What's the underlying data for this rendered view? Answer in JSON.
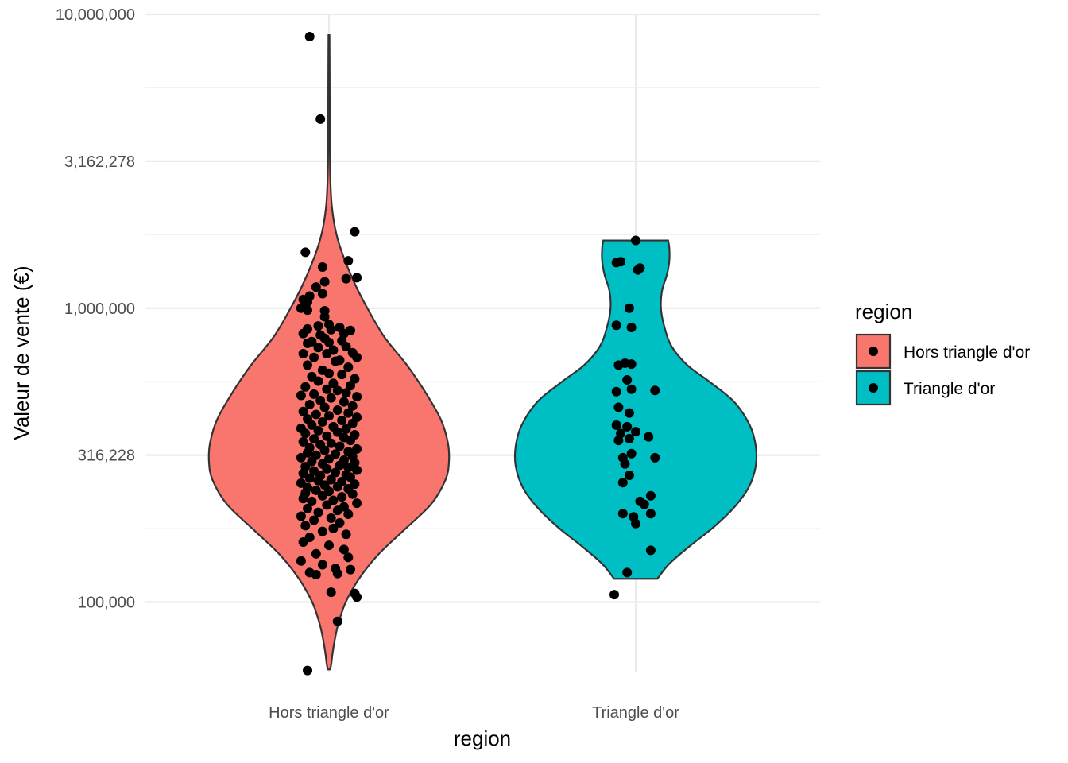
{
  "chart_data": {
    "type": "violin",
    "xlabel": "region",
    "ylabel": "Valeur de vente (€)",
    "y_scale": "log10",
    "ylim": [
      58000,
      10000000
    ],
    "y_ticks": [
      {
        "value": 100000,
        "label": "100,000"
      },
      {
        "value": 316228,
        "label": "316,228"
      },
      {
        "value": 1000000,
        "label": "1,000,000"
      },
      {
        "value": 3162278,
        "label": "3,162,278"
      },
      {
        "value": 10000000,
        "label": "10,000,000"
      }
    ],
    "y_minor_ticks": [
      56234,
      177828,
      562341,
      1778279,
      5623413
    ],
    "categories": [
      "Hors triangle d'or",
      "Triangle d'or"
    ],
    "grid": true,
    "legend": {
      "title": "region",
      "position": "right",
      "entries": [
        "Hors triangle d'or",
        "Triangle d'or"
      ]
    },
    "colors": {
      "Hors triangle d'or": "#F8766D",
      "Triangle d'or": "#00BFC4",
      "points": "#000000",
      "outline": "#333333"
    },
    "series": [
      {
        "name": "Hors triangle d'or",
        "violin_range": [
          59000,
          8500000
        ],
        "density": [
          [
            59000,
            0.01
          ],
          [
            62000,
            0.02
          ],
          [
            67000,
            0.03
          ],
          [
            75000,
            0.05
          ],
          [
            85000,
            0.08
          ],
          [
            100000,
            0.14
          ],
          [
            120000,
            0.25
          ],
          [
            145000,
            0.41
          ],
          [
            175000,
            0.62
          ],
          [
            215000,
            0.85
          ],
          [
            260000,
            0.97
          ],
          [
            300000,
            1.0
          ],
          [
            350000,
            0.99
          ],
          [
            420000,
            0.93
          ],
          [
            520000,
            0.8
          ],
          [
            640000,
            0.65
          ],
          [
            800000,
            0.46
          ],
          [
            1000000,
            0.32
          ],
          [
            1200000,
            0.22
          ],
          [
            1500000,
            0.12
          ],
          [
            1800000,
            0.06
          ],
          [
            2200000,
            0.025
          ],
          [
            2700000,
            0.012
          ],
          [
            3500000,
            0.007
          ],
          [
            5000000,
            0.006
          ],
          [
            7000000,
            0.005
          ],
          [
            8500000,
            0.004
          ]
        ],
        "points": [
          {
            "x": -0.09,
            "y": 8400000
          },
          {
            "x": -0.04,
            "y": 4400000
          },
          {
            "x": 0.12,
            "y": 1820000
          },
          {
            "x": -0.11,
            "y": 1550000
          },
          {
            "x": 0.09,
            "y": 1450000
          },
          {
            "x": -0.03,
            "y": 1380000
          },
          {
            "x": 0.13,
            "y": 1270000
          },
          {
            "x": 0.08,
            "y": 1260000
          },
          {
            "x": -0.02,
            "y": 1230000
          },
          {
            "x": -0.06,
            "y": 1180000
          },
          {
            "x": -0.03,
            "y": 1120000
          },
          {
            "x": -0.09,
            "y": 1100000
          },
          {
            "x": -0.12,
            "y": 1070000
          },
          {
            "x": -0.1,
            "y": 1050000
          },
          {
            "x": -0.02,
            "y": 980000
          },
          {
            "x": -0.13,
            "y": 1000000
          },
          {
            "x": -0.1,
            "y": 985000
          },
          {
            "x": -0.02,
            "y": 935000
          },
          {
            "x": 0.0,
            "y": 880000
          },
          {
            "x": -0.05,
            "y": 870000
          },
          {
            "x": 0.05,
            "y": 860000
          },
          {
            "x": -0.1,
            "y": 850000
          },
          {
            "x": 0.01,
            "y": 845000
          },
          {
            "x": 0.07,
            "y": 820000
          },
          {
            "x": -0.04,
            "y": 810000
          },
          {
            "x": -0.02,
            "y": 790000
          },
          {
            "x": -0.12,
            "y": 820000
          },
          {
            "x": 0.1,
            "y": 840000
          },
          {
            "x": 0.06,
            "y": 775000
          },
          {
            "x": -0.08,
            "y": 770000
          },
          {
            "x": 0.0,
            "y": 765000
          },
          {
            "x": -0.1,
            "y": 760000
          },
          {
            "x": 0.08,
            "y": 740000
          },
          {
            "x": -0.05,
            "y": 735000
          },
          {
            "x": 0.02,
            "y": 720000
          },
          {
            "x": -0.01,
            "y": 700000
          },
          {
            "x": 0.11,
            "y": 705000
          },
          {
            "x": 0.13,
            "y": 680000
          },
          {
            "x": -0.12,
            "y": 700000
          },
          {
            "x": -0.07,
            "y": 680000
          },
          {
            "x": 0.05,
            "y": 665000
          },
          {
            "x": 0.03,
            "y": 660000
          },
          {
            "x": -0.1,
            "y": 640000
          },
          {
            "x": 0.09,
            "y": 630000
          },
          {
            "x": -0.03,
            "y": 615000
          },
          {
            "x": 0.0,
            "y": 600000
          },
          {
            "x": 0.06,
            "y": 595000
          },
          {
            "x": -0.08,
            "y": 585000
          },
          {
            "x": 0.12,
            "y": 575000
          },
          {
            "x": -0.05,
            "y": 565000
          },
          {
            "x": 0.02,
            "y": 555000
          },
          {
            "x": 0.1,
            "y": 545000
          },
          {
            "x": -0.11,
            "y": 540000
          },
          {
            "x": -0.01,
            "y": 530000
          },
          {
            "x": 0.04,
            "y": 525000
          },
          {
            "x": 0.08,
            "y": 515000
          },
          {
            "x": -0.07,
            "y": 510000
          },
          {
            "x": -0.13,
            "y": 505000
          },
          {
            "x": 0.13,
            "y": 500000
          },
          {
            "x": 0.01,
            "y": 495000
          },
          {
            "x": -0.04,
            "y": 485000
          },
          {
            "x": 0.07,
            "y": 480000
          },
          {
            "x": -0.09,
            "y": 470000
          },
          {
            "x": 0.11,
            "y": 465000
          },
          {
            "x": -0.02,
            "y": 460000
          },
          {
            "x": 0.04,
            "y": 450000
          },
          {
            "x": -0.12,
            "y": 445000
          },
          {
            "x": 0.09,
            "y": 440000
          },
          {
            "x": -0.06,
            "y": 435000
          },
          {
            "x": 0.0,
            "y": 430000
          },
          {
            "x": 0.13,
            "y": 425000
          },
          {
            "x": -0.1,
            "y": 420000
          },
          {
            "x": 0.06,
            "y": 415000
          },
          {
            "x": -0.03,
            "y": 410000
          },
          {
            "x": 0.11,
            "y": 405000
          },
          {
            "x": -0.08,
            "y": 400000
          },
          {
            "x": 0.02,
            "y": 395000
          },
          {
            "x": -0.13,
            "y": 390000
          },
          {
            "x": 0.08,
            "y": 388000
          },
          {
            "x": -0.05,
            "y": 383000
          },
          {
            "x": 0.04,
            "y": 379000
          },
          {
            "x": -0.11,
            "y": 375000
          },
          {
            "x": 0.12,
            "y": 371000
          },
          {
            "x": -0.01,
            "y": 367000
          },
          {
            "x": 0.07,
            "y": 363000
          },
          {
            "x": -0.07,
            "y": 359000
          },
          {
            "x": 0.1,
            "y": 355000
          },
          {
            "x": -0.12,
            "y": 351000
          },
          {
            "x": 0.01,
            "y": 347000
          },
          {
            "x": -0.04,
            "y": 343000
          },
          {
            "x": 0.05,
            "y": 339000
          },
          {
            "x": -0.09,
            "y": 335000
          },
          {
            "x": 0.13,
            "y": 332000
          },
          {
            "x": -0.02,
            "y": 328000
          },
          {
            "x": 0.09,
            "y": 325000
          },
          {
            "x": -0.1,
            "y": 322000
          },
          {
            "x": 0.03,
            "y": 319000
          },
          {
            "x": -0.06,
            "y": 316000
          },
          {
            "x": 0.11,
            "y": 313000
          },
          {
            "x": -0.13,
            "y": 310000
          },
          {
            "x": 0.0,
            "y": 307000
          },
          {
            "x": 0.07,
            "y": 304000
          },
          {
            "x": -0.08,
            "y": 301000
          },
          {
            "x": 0.12,
            "y": 298000
          },
          {
            "x": -0.03,
            "y": 295000
          },
          {
            "x": 0.05,
            "y": 292000
          },
          {
            "x": -0.11,
            "y": 289000
          },
          {
            "x": 0.09,
            "y": 287000
          },
          {
            "x": -0.01,
            "y": 284000
          },
          {
            "x": 0.13,
            "y": 281000
          },
          {
            "x": -0.07,
            "y": 279000
          },
          {
            "x": 0.03,
            "y": 276000
          },
          {
            "x": -0.12,
            "y": 274000
          },
          {
            "x": 0.08,
            "y": 271000
          },
          {
            "x": -0.04,
            "y": 269000
          },
          {
            "x": 0.1,
            "y": 266000
          },
          {
            "x": -0.09,
            "y": 264000
          },
          {
            "x": 0.01,
            "y": 261000
          },
          {
            "x": -0.05,
            "y": 259000
          },
          {
            "x": 0.06,
            "y": 257000
          },
          {
            "x": -0.13,
            "y": 254000
          },
          {
            "x": 0.12,
            "y": 252000
          },
          {
            "x": -0.02,
            "y": 250000
          },
          {
            "x": 0.04,
            "y": 247000
          },
          {
            "x": -0.1,
            "y": 245000
          },
          {
            "x": 0.09,
            "y": 243000
          },
          {
            "x": -0.06,
            "y": 240000
          },
          {
            "x": 0.0,
            "y": 238000
          },
          {
            "x": -0.11,
            "y": 235000
          },
          {
            "x": 0.11,
            "y": 233000
          },
          {
            "x": -0.03,
            "y": 230000
          },
          {
            "x": 0.06,
            "y": 228000
          },
          {
            "x": -0.12,
            "y": 225000
          },
          {
            "x": 0.02,
            "y": 222000
          },
          {
            "x": -0.08,
            "y": 220000
          },
          {
            "x": 0.13,
            "y": 217000
          },
          {
            "x": -0.01,
            "y": 214000
          },
          {
            "x": 0.07,
            "y": 211000
          },
          {
            "x": -0.1,
            "y": 208000
          },
          {
            "x": 0.04,
            "y": 205000
          },
          {
            "x": -0.05,
            "y": 202000
          },
          {
            "x": 0.09,
            "y": 199000
          },
          {
            "x": -0.13,
            "y": 196000
          },
          {
            "x": 0.01,
            "y": 193000
          },
          {
            "x": -0.07,
            "y": 190000
          },
          {
            "x": 0.05,
            "y": 186000
          },
          {
            "x": -0.11,
            "y": 182000
          },
          {
            "x": 0.02,
            "y": 178000
          },
          {
            "x": -0.03,
            "y": 174000
          },
          {
            "x": 0.08,
            "y": 170000
          },
          {
            "x": -0.09,
            "y": 166000
          },
          {
            "x": -0.12,
            "y": 160000
          },
          {
            "x": 0.0,
            "y": 156000
          },
          {
            "x": 0.07,
            "y": 151000
          },
          {
            "x": -0.06,
            "y": 146000
          },
          {
            "x": 0.09,
            "y": 142000
          },
          {
            "x": -0.13,
            "y": 138000
          },
          {
            "x": -0.03,
            "y": 134000
          },
          {
            "x": 0.03,
            "y": 130000
          },
          {
            "x": -0.09,
            "y": 126000
          },
          {
            "x": -0.06,
            "y": 124000
          },
          {
            "x": 0.04,
            "y": 125000
          },
          {
            "x": 0.1,
            "y": 129000
          },
          {
            "x": 0.12,
            "y": 107000
          },
          {
            "x": 0.13,
            "y": 104000
          },
          {
            "x": 0.01,
            "y": 108000
          },
          {
            "x": 0.04,
            "y": 86000
          },
          {
            "x": -0.1,
            "y": 58500
          }
        ]
      },
      {
        "name": "Triangle d'or",
        "violin_range": [
          120000,
          1700000
        ],
        "density": [
          [
            120000,
            0.18
          ],
          [
            135000,
            0.28
          ],
          [
            155000,
            0.45
          ],
          [
            180000,
            0.65
          ],
          [
            210000,
            0.82
          ],
          [
            245000,
            0.94
          ],
          [
            290000,
            1.0
          ],
          [
            340000,
            1.0
          ],
          [
            400000,
            0.95
          ],
          [
            480000,
            0.82
          ],
          [
            560000,
            0.62
          ],
          [
            640000,
            0.43
          ],
          [
            740000,
            0.3
          ],
          [
            860000,
            0.24
          ],
          [
            1000000,
            0.21
          ],
          [
            1150000,
            0.22
          ],
          [
            1300000,
            0.26
          ],
          [
            1450000,
            0.28
          ],
          [
            1600000,
            0.28
          ],
          [
            1700000,
            0.27
          ]
        ],
        "points": [
          {
            "x": 0.0,
            "y": 1700000
          },
          {
            "x": -0.09,
            "y": 1430000
          },
          {
            "x": -0.07,
            "y": 1440000
          },
          {
            "x": 0.02,
            "y": 1370000
          },
          {
            "x": 0.01,
            "y": 1350000
          },
          {
            "x": -0.03,
            "y": 1000000
          },
          {
            "x": -0.09,
            "y": 875000
          },
          {
            "x": -0.02,
            "y": 860000
          },
          {
            "x": -0.08,
            "y": 640000
          },
          {
            "x": -0.05,
            "y": 650000
          },
          {
            "x": -0.02,
            "y": 645000
          },
          {
            "x": -0.04,
            "y": 570000
          },
          {
            "x": -0.09,
            "y": 520000
          },
          {
            "x": 0.09,
            "y": 525000
          },
          {
            "x": -0.02,
            "y": 530000
          },
          {
            "x": -0.08,
            "y": 460000
          },
          {
            "x": -0.03,
            "y": 440000
          },
          {
            "x": -0.09,
            "y": 400000
          },
          {
            "x": -0.04,
            "y": 395000
          },
          {
            "x": -0.07,
            "y": 375000
          },
          {
            "x": 0.0,
            "y": 380000
          },
          {
            "x": 0.06,
            "y": 365000
          },
          {
            "x": -0.03,
            "y": 360000
          },
          {
            "x": -0.08,
            "y": 355000
          },
          {
            "x": -0.02,
            "y": 320000
          },
          {
            "x": -0.06,
            "y": 310000
          },
          {
            "x": 0.09,
            "y": 310000
          },
          {
            "x": -0.05,
            "y": 295000
          },
          {
            "x": -0.03,
            "y": 270000
          },
          {
            "x": -0.06,
            "y": 255000
          },
          {
            "x": 0.07,
            "y": 230000
          },
          {
            "x": 0.02,
            "y": 220000
          },
          {
            "x": 0.04,
            "y": 215000
          },
          {
            "x": -0.06,
            "y": 200000
          },
          {
            "x": 0.07,
            "y": 200000
          },
          {
            "x": -0.01,
            "y": 195000
          },
          {
            "x": 0.0,
            "y": 185000
          },
          {
            "x": 0.07,
            "y": 150000
          },
          {
            "x": -0.04,
            "y": 126000
          },
          {
            "x": -0.1,
            "y": 106000
          }
        ]
      }
    ]
  }
}
